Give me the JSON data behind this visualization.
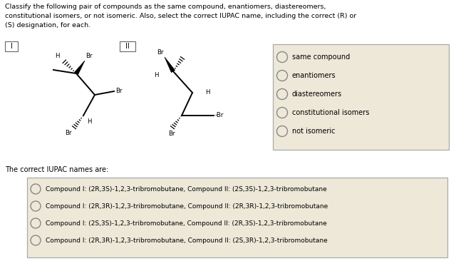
{
  "title_text": "Classify the following pair of compounds as the same compound, enantiomers, diastereomers,\nconstitutional isomers, or not isomeric. Also, select the correct IUPAC name, including the correct (R) or\n(S) designation, for each.",
  "box1_label": "I",
  "box2_label": "II",
  "radio_options": [
    "same compound",
    "enantiomers",
    "diastereomers",
    "constitutional isomers",
    "not isomeric"
  ],
  "iupac_label": "The correct IUPAC names are:",
  "iupac_options": [
    "Compound I: (2R,3S)-1,2,3-tribromobutane, Compound II: (2S,3S)-1,2,3-tribromobutane",
    "Compound I: (2R,3R)-1,2,3-tribromobutane, Compound II: (2R,3R)-1,2,3-tribromobutane",
    "Compound I: (2S,3S)-1,2,3-tribromobutane, Compound II: (2R,3S)-1,2,3-tribromobutane",
    "Compound I: (2R,3R)-1,2,3-tribromobutane, Compound II: (2S,3R)-1,2,3-tribromobutane"
  ],
  "bg_color": "#ffffff",
  "radio_box_bg": "#ede8d8",
  "iupac_box_bg": "#ede8d8",
  "text_color": "#000000",
  "font_size_title": 6.8,
  "font_size_body": 7.0,
  "font_size_chem": 6.2
}
